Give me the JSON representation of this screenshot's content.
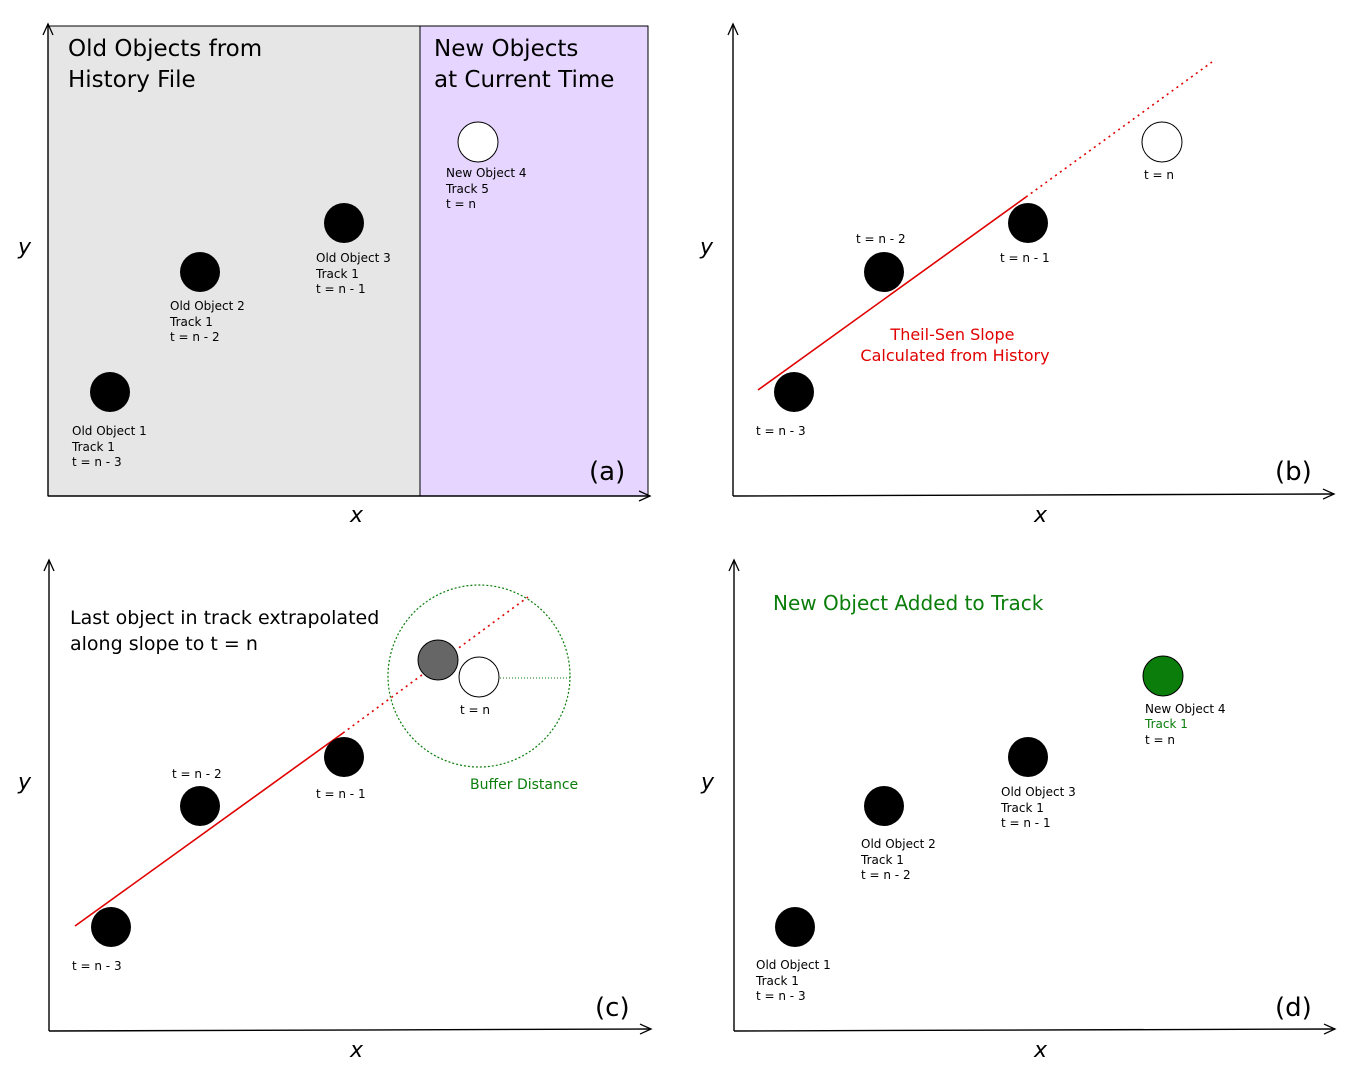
{
  "colors": {
    "history_bg": "#e6e6e6",
    "current_bg": "#e5d5ff",
    "slope": "#e00000",
    "buffer": "#0a7d0a",
    "matched_object": "#0a7d0a",
    "extrapolated_object": "#666666"
  },
  "axes": {
    "x": "x",
    "y": "y"
  },
  "panel_a": {
    "label": "(a)",
    "history_title": [
      "Old Objects from",
      "History File"
    ],
    "current_title": [
      "New Objects",
      "at Current Time"
    ],
    "obj1": [
      "Old Object 1",
      "Track 1",
      "t = n - 3"
    ],
    "obj2": [
      "Old Object 2",
      "Track 1",
      "t = n - 2"
    ],
    "obj3": [
      "Old Object 3",
      "Track 1",
      "t = n - 1"
    ],
    "obj4": [
      "New Object 4",
      "Track 5",
      "t = n"
    ]
  },
  "panel_b": {
    "label": "(b)",
    "slope_text": [
      "Theil-Sen Slope",
      "Calculated from History"
    ],
    "t1": "t = n - 3",
    "t2": "t = n - 2",
    "t3": "t = n - 1",
    "t4": "t = n"
  },
  "panel_c": {
    "label": "(c)",
    "description": [
      "Last object in track extrapolated",
      "along slope to t = n"
    ],
    "buffer_text": "Buffer Distance",
    "t1": "t = n - 3",
    "t2": "t = n - 2",
    "t3": "t = n - 1",
    "t4": "t = n"
  },
  "panel_d": {
    "label": "(d)",
    "title": "New Object Added to Track",
    "obj1": [
      "Old Object 1",
      "Track 1",
      "t = n - 3"
    ],
    "obj2": [
      "Old Object 2",
      "Track 1",
      "t = n - 2"
    ],
    "obj3": [
      "Old Object 3",
      "Track 1",
      "t = n - 1"
    ],
    "obj4_name": "New Object 4",
    "obj4_track": "Track 1",
    "obj4_time": "t = n"
  }
}
